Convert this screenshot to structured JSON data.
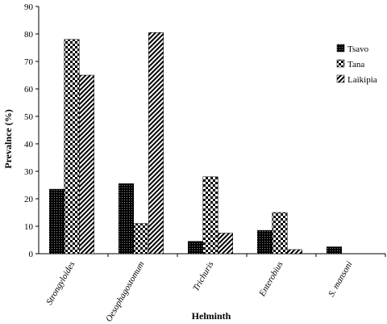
{
  "chart_data": {
    "type": "bar",
    "categories": [
      "Strongyloides",
      "Oesophagostomum",
      "Trichuris",
      "Enterobius",
      "S. mansoni"
    ],
    "series": [
      {
        "name": "Tsavo",
        "values": [
          23.5,
          25.5,
          4.5,
          8.5,
          2.5
        ],
        "pattern": "dotted-black"
      },
      {
        "name": "Tana",
        "values": [
          78,
          11,
          28,
          15,
          0
        ],
        "pattern": "checker"
      },
      {
        "name": "Laikipia",
        "values": [
          65,
          80.5,
          7.5,
          1.5,
          0
        ],
        "pattern": "diagonal"
      }
    ],
    "xlabel": "Helminth",
    "ylabel": "Prevalnce (%)",
    "ylim": [
      0,
      90
    ],
    "yticks": [
      "0",
      "10",
      "20",
      "30",
      "40",
      "50",
      "60",
      "70",
      "80",
      "90"
    ],
    "grid": false,
    "legend_position": "right"
  }
}
